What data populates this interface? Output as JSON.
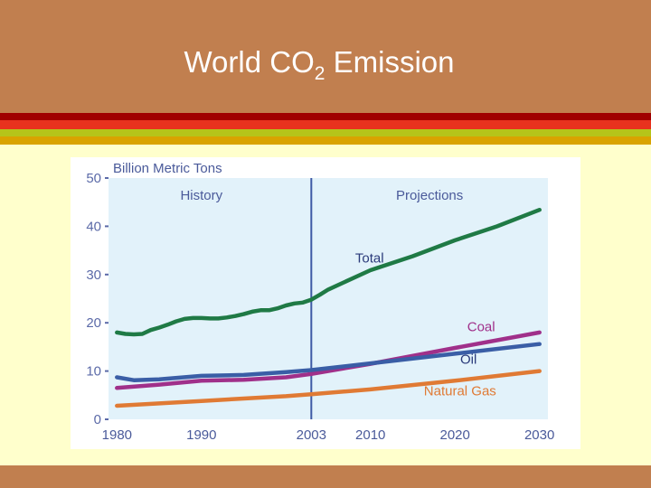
{
  "slide": {
    "title_main": "World CO",
    "title_sub": "2",
    "title_end": " Emission",
    "colors": {
      "header": "#c17f4f",
      "background": "#ffffcc"
    }
  },
  "chart_data": {
    "type": "line",
    "ylabel": "Billion Metric Tons",
    "ylim": [
      0,
      50
    ],
    "yticks": [
      0,
      10,
      20,
      30,
      40,
      50
    ],
    "xticks": [
      "1980",
      "1990",
      "2003",
      "2010",
      "2020",
      "2030"
    ],
    "x_tick_values": [
      1980,
      1990,
      2003,
      2010,
      2020,
      2030
    ],
    "xlim": [
      1979,
      2031
    ],
    "divider_year": 2003,
    "region_labels": {
      "history": "History",
      "projections": "Projections"
    },
    "series": [
      {
        "name": "Total",
        "color": "#1f7a45",
        "x": [
          1980,
          1981,
          1982,
          1983,
          1984,
          1985,
          1986,
          1987,
          1988,
          1989,
          1990,
          1991,
          1992,
          1993,
          1994,
          1995,
          1996,
          1997,
          1998,
          1999,
          2000,
          2001,
          2002,
          2003,
          2004,
          2005,
          2010,
          2015,
          2020,
          2025,
          2030
        ],
        "values": [
          18.0,
          17.7,
          17.6,
          17.7,
          18.5,
          19.0,
          19.6,
          20.3,
          20.8,
          21.0,
          21.0,
          20.9,
          20.9,
          21.1,
          21.4,
          21.8,
          22.3,
          22.6,
          22.6,
          23.0,
          23.6,
          24.0,
          24.2,
          24.8,
          25.8,
          26.9,
          30.9,
          33.8,
          37.1,
          40.0,
          43.4
        ]
      },
      {
        "name": "Coal",
        "color": "#a0308a",
        "x": [
          1980,
          1985,
          1990,
          1995,
          2000,
          2003,
          2010,
          2020,
          2030
        ],
        "values": [
          6.5,
          7.2,
          8.0,
          8.2,
          8.7,
          9.4,
          11.5,
          14.8,
          18.0
        ]
      },
      {
        "name": "Oil",
        "color": "#3a5ea6",
        "x": [
          1980,
          1982,
          1985,
          1990,
          1995,
          2000,
          2003,
          2010,
          2020,
          2030
        ],
        "values": [
          8.7,
          8.1,
          8.3,
          9.0,
          9.2,
          9.8,
          10.2,
          11.6,
          13.6,
          15.6
        ]
      },
      {
        "name": "Natural Gas",
        "color": "#e07a34",
        "x": [
          1980,
          1985,
          1990,
          1995,
          2000,
          2003,
          2010,
          2020,
          2030
        ],
        "values": [
          2.8,
          3.3,
          3.8,
          4.3,
          4.8,
          5.2,
          6.2,
          8.0,
          10.0
        ]
      }
    ]
  }
}
